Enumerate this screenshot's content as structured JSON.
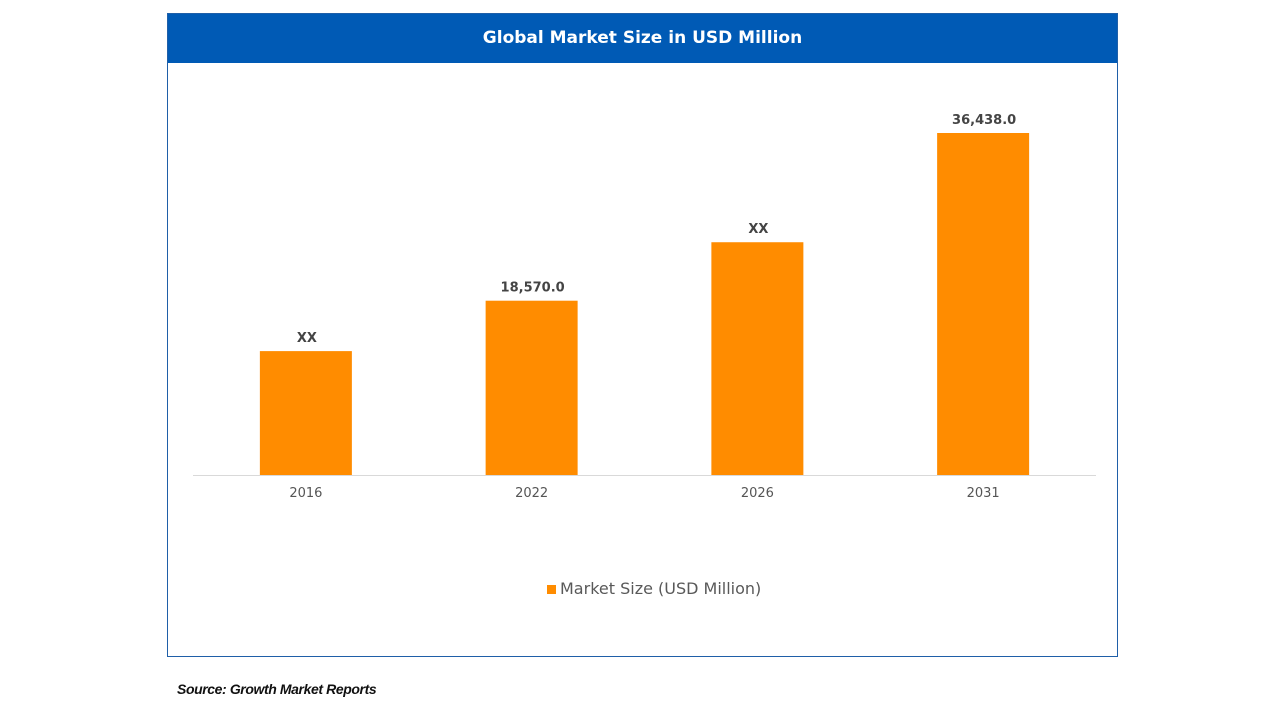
{
  "header": {
    "title": "Global Market Size in USD Million"
  },
  "source": "Source: Growth Market Reports",
  "colors": {
    "header": "#005ab5",
    "bar": "#ff8c00",
    "label": "#444444",
    "axis": "#d9d9d9",
    "tick": "#555555"
  },
  "chart_data": {
    "type": "bar",
    "title": "Global Market Size in USD Million",
    "xlabel": "",
    "ylabel": "",
    "categories": [
      "2016",
      "2022",
      "2026",
      "2031"
    ],
    "series": [
      {
        "name": "Market Size (USD Million)",
        "values": [
          13200,
          18570.0,
          24800,
          36438.0
        ],
        "labels": [
          "XX",
          "18,570.0",
          "XX",
          "36,438.0"
        ]
      }
    ],
    "ylim": [
      0,
      36438.0
    ],
    "grid": false,
    "y_axis_visible": false,
    "legend": {
      "position": "bottom",
      "entries": [
        "Market Size (USD Million)"
      ]
    }
  }
}
